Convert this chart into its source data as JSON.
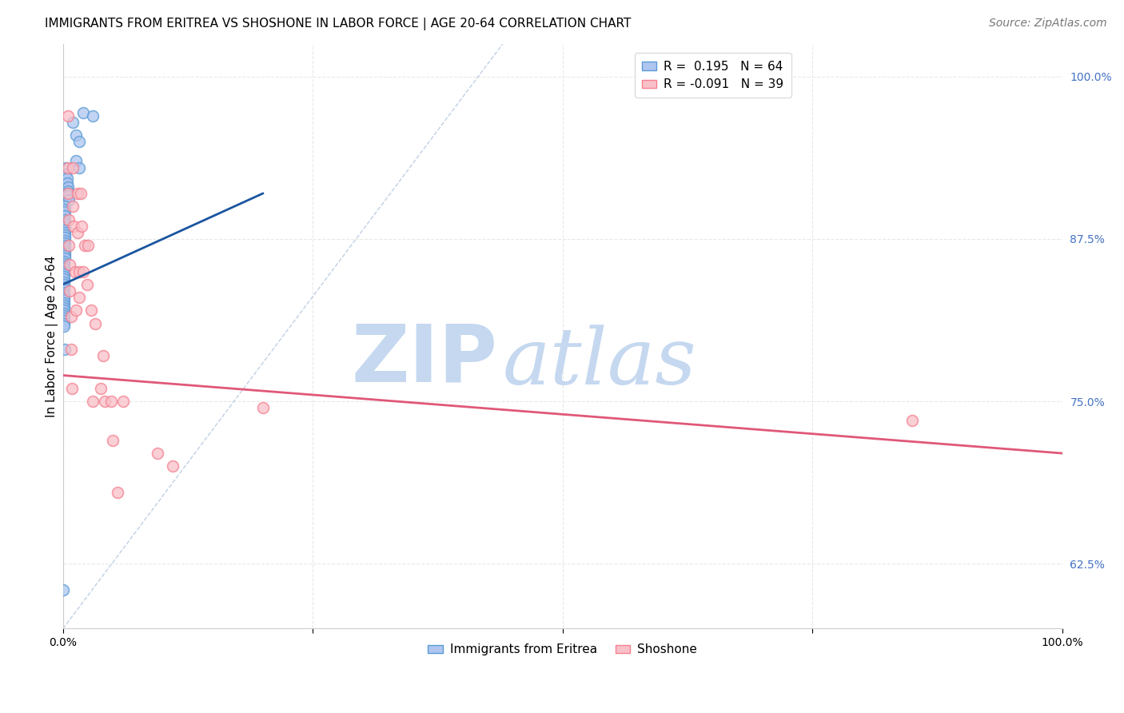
{
  "title": "IMMIGRANTS FROM ERITREA VS SHOSHONE IN LABOR FORCE | AGE 20-64 CORRELATION CHART",
  "source": "Source: ZipAtlas.com",
  "ylabel": "In Labor Force | Age 20-64",
  "xlim": [
    0.0,
    1.0
  ],
  "ylim": [
    0.575,
    1.025
  ],
  "yticks": [
    0.625,
    0.75,
    0.875,
    1.0
  ],
  "ytick_labels": [
    "62.5%",
    "75.0%",
    "87.5%",
    "100.0%"
  ],
  "xticks": [
    0.0,
    0.25,
    0.5,
    0.75,
    1.0
  ],
  "xtick_labels": [
    "0.0%",
    "",
    "",
    "",
    "100.0%"
  ],
  "blue_scatter_x": [
    0.02,
    0.03,
    0.01,
    0.013,
    0.016,
    0.013,
    0.016,
    0.003,
    0.003,
    0.004,
    0.004,
    0.005,
    0.005,
    0.005,
    0.005,
    0.006,
    0.002,
    0.002,
    0.002,
    0.002,
    0.002,
    0.002,
    0.002,
    0.002,
    0.002,
    0.002,
    0.002,
    0.002,
    0.002,
    0.002,
    0.002,
    0.002,
    0.002,
    0.002,
    0.002,
    0.002,
    0.001,
    0.001,
    0.001,
    0.001,
    0.001,
    0.001,
    0.001,
    0.001,
    0.001,
    0.001,
    0.001,
    0.001,
    0.001,
    0.001,
    0.001,
    0.001,
    0.001,
    0.001,
    0.001,
    0.001,
    0.001,
    0.001,
    0.001,
    0.001,
    0.001,
    0.001,
    0.002,
    0.0
  ],
  "blue_scatter_y": [
    0.972,
    0.97,
    0.965,
    0.955,
    0.95,
    0.935,
    0.93,
    0.93,
    0.925,
    0.922,
    0.918,
    0.915,
    0.912,
    0.91,
    0.908,
    0.905,
    0.9,
    0.898,
    0.896,
    0.893,
    0.89,
    0.888,
    0.886,
    0.884,
    0.882,
    0.88,
    0.878,
    0.876,
    0.874,
    0.872,
    0.87,
    0.868,
    0.866,
    0.864,
    0.862,
    0.86,
    0.858,
    0.856,
    0.854,
    0.852,
    0.85,
    0.848,
    0.846,
    0.844,
    0.842,
    0.84,
    0.838,
    0.836,
    0.834,
    0.832,
    0.83,
    0.828,
    0.826,
    0.824,
    0.822,
    0.82,
    0.818,
    0.816,
    0.814,
    0.812,
    0.81,
    0.808,
    0.79,
    0.605
  ],
  "pink_scatter_x": [
    0.005,
    0.005,
    0.005,
    0.006,
    0.006,
    0.007,
    0.007,
    0.008,
    0.008,
    0.009,
    0.01,
    0.01,
    0.011,
    0.012,
    0.013,
    0.015,
    0.015,
    0.016,
    0.016,
    0.018,
    0.019,
    0.02,
    0.022,
    0.024,
    0.025,
    0.028,
    0.03,
    0.032,
    0.038,
    0.04,
    0.042,
    0.048,
    0.05,
    0.055,
    0.06,
    0.095,
    0.11,
    0.2,
    0.85
  ],
  "pink_scatter_y": [
    0.97,
    0.93,
    0.91,
    0.89,
    0.87,
    0.855,
    0.835,
    0.815,
    0.79,
    0.76,
    0.93,
    0.9,
    0.885,
    0.85,
    0.82,
    0.91,
    0.88,
    0.85,
    0.83,
    0.91,
    0.885,
    0.85,
    0.87,
    0.84,
    0.87,
    0.82,
    0.75,
    0.81,
    0.76,
    0.785,
    0.75,
    0.75,
    0.72,
    0.68,
    0.75,
    0.71,
    0.7,
    0.745,
    0.735
  ],
  "blue_line_x": [
    0.0,
    0.2
  ],
  "blue_line_y": [
    0.84,
    0.91
  ],
  "pink_line_x": [
    0.0,
    1.0
  ],
  "pink_line_y": [
    0.77,
    0.71
  ],
  "diag_line_x": [
    0.0,
    0.44
  ],
  "diag_line_y": [
    0.575,
    1.025
  ],
  "watermark_zip": "ZIP",
  "watermark_atlas": "atlas",
  "watermark_color": "#c5d8f0",
  "bg_color": "#ffffff",
  "grid_color": "#e8e8e8",
  "blue_scatter_face": "#aec6f0",
  "blue_scatter_edge": "#5b9bd5",
  "pink_scatter_face": "#f9c0c8",
  "pink_scatter_edge": "#f48090",
  "blue_line_color": "#1a55a0",
  "pink_line_color": "#e05878",
  "diag_color": "#b0c4de",
  "title_fontsize": 11,
  "axis_label_fontsize": 11,
  "tick_fontsize": 10,
  "legend_fontsize": 11,
  "source_fontsize": 10
}
